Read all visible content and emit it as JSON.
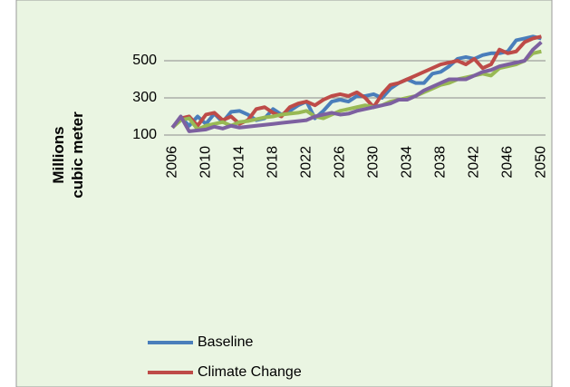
{
  "chart_data": {
    "type": "line",
    "y_label": "Millions cubic meter",
    "x": [
      2006,
      2007,
      2008,
      2009,
      2010,
      2011,
      2012,
      2013,
      2014,
      2015,
      2016,
      2017,
      2018,
      2019,
      2020,
      2021,
      2022,
      2023,
      2024,
      2025,
      2026,
      2027,
      2028,
      2029,
      2030,
      2031,
      2032,
      2033,
      2034,
      2035,
      2036,
      2037,
      2038,
      2039,
      2040,
      2041,
      2042,
      2043,
      2044,
      2045,
      2046,
      2047,
      2048,
      2049,
      2050
    ],
    "xlim": [
      2005,
      2050.5
    ],
    "xticks": [
      2006,
      2010,
      2014,
      2018,
      2022,
      2026,
      2030,
      2034,
      2038,
      2042,
      2046,
      2050
    ],
    "ylim": [
      0,
      700
    ],
    "yticks": [
      100,
      300,
      500
    ],
    "grid": true,
    "series": [
      {
        "name": "Baseline",
        "color": "#4a7ebb",
        "values": [
          140,
          195,
          150,
          200,
          160,
          215,
          170,
          225,
          230,
          210,
          180,
          190,
          240,
          210,
          230,
          260,
          280,
          190,
          230,
          280,
          290,
          280,
          310,
          310,
          320,
          300,
          350,
          380,
          400,
          380,
          380,
          430,
          440,
          470,
          510,
          520,
          510,
          530,
          540,
          540,
          550,
          610,
          620,
          630,
          620
        ]
      },
      {
        "name": "Climate Change",
        "color": "#be4b48",
        "values": [
          140,
          190,
          200,
          150,
          210,
          220,
          180,
          200,
          160,
          180,
          240,
          250,
          220,
          200,
          250,
          270,
          280,
          260,
          290,
          310,
          320,
          310,
          330,
          300,
          250,
          320,
          370,
          380,
          400,
          420,
          440,
          460,
          480,
          490,
          500,
          480,
          510,
          460,
          480,
          560,
          540,
          550,
          600,
          620,
          630
        ]
      },
      {
        "color": "#98b954",
        "values": [
          140,
          180,
          190,
          130,
          150,
          160,
          170,
          150,
          170,
          175,
          185,
          195,
          200,
          210,
          215,
          220,
          230,
          200,
          190,
          210,
          230,
          240,
          250,
          260,
          250,
          260,
          280,
          290,
          300,
          310,
          330,
          350,
          370,
          380,
          400,
          410,
          420,
          430,
          420,
          460,
          470,
          480,
          500,
          540,
          550
        ]
      },
      {
        "color": "#7d60a0",
        "values": [
          140,
          200,
          120,
          125,
          130,
          145,
          135,
          150,
          140,
          145,
          150,
          155,
          160,
          165,
          170,
          175,
          180,
          200,
          210,
          220,
          210,
          215,
          230,
          240,
          250,
          260,
          270,
          290,
          290,
          310,
          340,
          360,
          380,
          400,
          400,
          400,
          420,
          440,
          450,
          470,
          480,
          490,
          500,
          560,
          600
        ]
      }
    ]
  }
}
